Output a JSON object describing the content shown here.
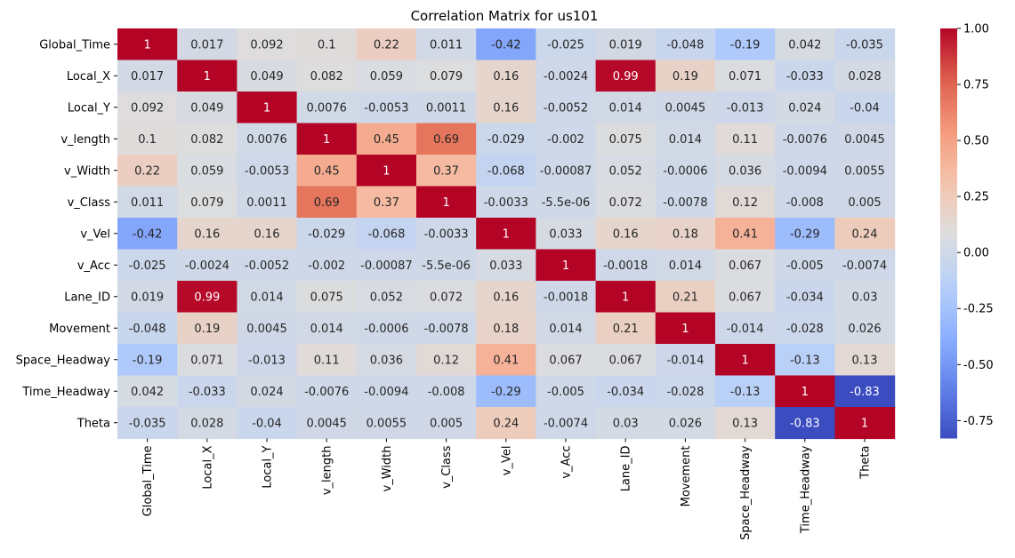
{
  "chart_data": {
    "type": "heatmap",
    "title": "Correlation Matrix for us101",
    "xlabel": "",
    "ylabel": "",
    "labels": [
      "Global_Time",
      "Local_X",
      "Local_Y",
      "v_length",
      "v_Width",
      "v_Class",
      "v_Vel",
      "v_Acc",
      "Lane_ID",
      "Movement",
      "Space_Headway",
      "Time_Headway",
      "Theta"
    ],
    "matrix": [
      [
        "1",
        "0.017",
        "0.092",
        "0.1",
        "0.22",
        "0.011",
        "-0.42",
        "-0.025",
        "0.019",
        "-0.048",
        "-0.19",
        "0.042",
        "-0.035"
      ],
      [
        "0.017",
        "1",
        "0.049",
        "0.082",
        "0.059",
        "0.079",
        "0.16",
        "-0.0024",
        "0.99",
        "0.19",
        "0.071",
        "-0.033",
        "0.028"
      ],
      [
        "0.092",
        "0.049",
        "1",
        "0.0076",
        "-0.0053",
        "0.0011",
        "0.16",
        "-0.0052",
        "0.014",
        "0.0045",
        "-0.013",
        "0.024",
        "-0.04"
      ],
      [
        "0.1",
        "0.082",
        "0.0076",
        "1",
        "0.45",
        "0.69",
        "-0.029",
        "-0.002",
        "0.075",
        "0.014",
        "0.11",
        "-0.0076",
        "0.0045"
      ],
      [
        "0.22",
        "0.059",
        "-0.0053",
        "0.45",
        "1",
        "0.37",
        "-0.068",
        "-0.00087",
        "0.052",
        "-0.0006",
        "0.036",
        "-0.0094",
        "0.0055"
      ],
      [
        "0.011",
        "0.079",
        "0.0011",
        "0.69",
        "0.37",
        "1",
        "-0.0033",
        "-5.5e-06",
        "0.072",
        "-0.0078",
        "0.12",
        "-0.008",
        "0.005"
      ],
      [
        "-0.42",
        "0.16",
        "0.16",
        "-0.029",
        "-0.068",
        "-0.0033",
        "1",
        "0.033",
        "0.16",
        "0.18",
        "0.41",
        "-0.29",
        "0.24"
      ],
      [
        "-0.025",
        "-0.0024",
        "-0.0052",
        "-0.002",
        "-0.00087",
        "-5.5e-06",
        "0.033",
        "1",
        "-0.0018",
        "0.014",
        "0.067",
        "-0.005",
        "-0.0074"
      ],
      [
        "0.019",
        "0.99",
        "0.014",
        "0.075",
        "0.052",
        "0.072",
        "0.16",
        "-0.0018",
        "1",
        "0.21",
        "0.067",
        "-0.034",
        "0.03"
      ],
      [
        "-0.048",
        "0.19",
        "0.0045",
        "0.014",
        "-0.0006",
        "-0.0078",
        "0.18",
        "0.014",
        "0.21",
        "1",
        "-0.014",
        "-0.028",
        "0.026"
      ],
      [
        "-0.19",
        "0.071",
        "-0.013",
        "0.11",
        "0.036",
        "0.12",
        "0.41",
        "0.067",
        "0.067",
        "-0.014",
        "1",
        "-0.13",
        "0.13"
      ],
      [
        "0.042",
        "-0.033",
        "0.024",
        "-0.0076",
        "-0.0094",
        "-0.008",
        "-0.29",
        "-0.005",
        "-0.034",
        "-0.028",
        "-0.13",
        "1",
        "-0.83"
      ],
      [
        "-0.035",
        "0.028",
        "-0.04",
        "0.0045",
        "0.0055",
        "0.005",
        "0.24",
        "-0.0074",
        "0.03",
        "0.026",
        "0.13",
        "-0.83",
        "1"
      ]
    ],
    "colormap": "coolwarm",
    "vmin": -0.83,
    "vmax": 1.0,
    "colorbar_ticks": [
      "1.00",
      "0.75",
      "0.50",
      "0.25",
      "0.00",
      "-0.25",
      "-0.50",
      "-0.75"
    ],
    "annotations": true,
    "grid": false,
    "legend": "colorbar-right"
  }
}
